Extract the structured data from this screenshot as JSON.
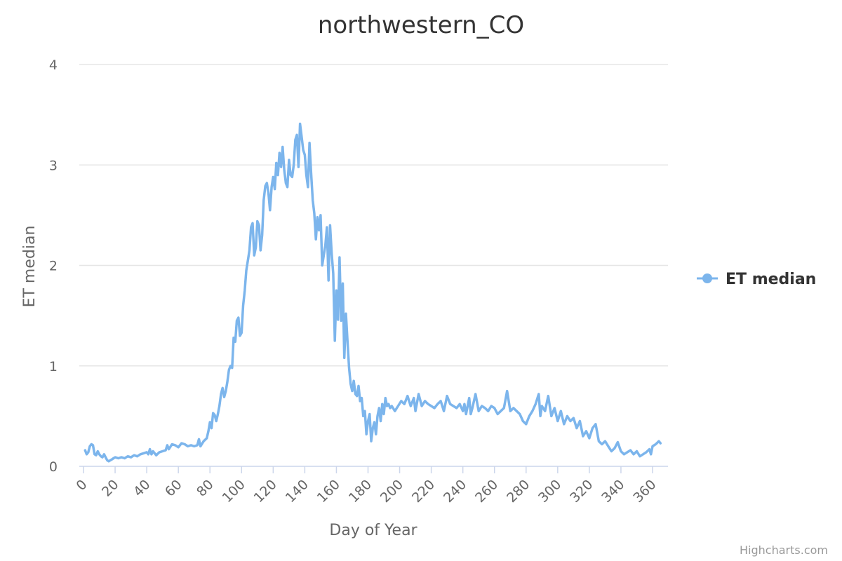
{
  "chart_data": {
    "type": "line",
    "title": "northwestern_CO",
    "xlabel": "Day of Year",
    "ylabel": "ET median",
    "xlim": [
      0,
      365
    ],
    "ylim": [
      0,
      4
    ],
    "x_ticks": [
      "0",
      "20",
      "40",
      "60",
      "80",
      "100",
      "120",
      "140",
      "160",
      "180",
      "200",
      "220",
      "240",
      "260",
      "280",
      "300",
      "320",
      "340",
      "360"
    ],
    "y_ticks": [
      "0",
      "1",
      "2",
      "3",
      "4"
    ],
    "grid": true,
    "legend_position": "right",
    "series": [
      {
        "name": "ET median",
        "color": "#7cb5ec",
        "points": [
          [
            1,
            0.16
          ],
          [
            2,
            0.12
          ],
          [
            3,
            0.14
          ],
          [
            4,
            0.2
          ],
          [
            5,
            0.22
          ],
          [
            6,
            0.21
          ],
          [
            7,
            0.12
          ],
          [
            8,
            0.11
          ],
          [
            9,
            0.15
          ],
          [
            10,
            0.12
          ],
          [
            11,
            0.1
          ],
          [
            12,
            0.09
          ],
          [
            13,
            0.12
          ],
          [
            14,
            0.09
          ],
          [
            15,
            0.06
          ],
          [
            16,
            0.05
          ],
          [
            17,
            0.06
          ],
          [
            18,
            0.07
          ],
          [
            19,
            0.08
          ],
          [
            20,
            0.09
          ],
          [
            22,
            0.08
          ],
          [
            24,
            0.09
          ],
          [
            26,
            0.08
          ],
          [
            28,
            0.1
          ],
          [
            30,
            0.09
          ],
          [
            32,
            0.11
          ],
          [
            34,
            0.1
          ],
          [
            36,
            0.12
          ],
          [
            38,
            0.13
          ],
          [
            40,
            0.14
          ],
          [
            41,
            0.12
          ],
          [
            42,
            0.17
          ],
          [
            43,
            0.12
          ],
          [
            44,
            0.15
          ],
          [
            46,
            0.11
          ],
          [
            48,
            0.14
          ],
          [
            50,
            0.15
          ],
          [
            52,
            0.16
          ],
          [
            53,
            0.21
          ],
          [
            54,
            0.17
          ],
          [
            56,
            0.22
          ],
          [
            58,
            0.21
          ],
          [
            60,
            0.19
          ],
          [
            62,
            0.23
          ],
          [
            64,
            0.22
          ],
          [
            66,
            0.2
          ],
          [
            68,
            0.21
          ],
          [
            70,
            0.2
          ],
          [
            72,
            0.21
          ],
          [
            73,
            0.27
          ],
          [
            74,
            0.2
          ],
          [
            76,
            0.25
          ],
          [
            78,
            0.28
          ],
          [
            79,
            0.35
          ],
          [
            80,
            0.44
          ],
          [
            81,
            0.38
          ],
          [
            82,
            0.53
          ],
          [
            83,
            0.51
          ],
          [
            84,
            0.45
          ],
          [
            85,
            0.52
          ],
          [
            86,
            0.6
          ],
          [
            87,
            0.72
          ],
          [
            88,
            0.78
          ],
          [
            89,
            0.69
          ],
          [
            90,
            0.75
          ],
          [
            91,
            0.84
          ],
          [
            92,
            0.96
          ],
          [
            93,
            1.0
          ],
          [
            94,
            0.98
          ],
          [
            95,
            1.28
          ],
          [
            96,
            1.24
          ],
          [
            97,
            1.45
          ],
          [
            98,
            1.48
          ],
          [
            99,
            1.3
          ],
          [
            100,
            1.33
          ],
          [
            101,
            1.6
          ],
          [
            102,
            1.75
          ],
          [
            103,
            1.95
          ],
          [
            104,
            2.05
          ],
          [
            105,
            2.15
          ],
          [
            106,
            2.38
          ],
          [
            107,
            2.42
          ],
          [
            108,
            2.1
          ],
          [
            109,
            2.18
          ],
          [
            110,
            2.44
          ],
          [
            111,
            2.4
          ],
          [
            112,
            2.15
          ],
          [
            113,
            2.3
          ],
          [
            114,
            2.65
          ],
          [
            115,
            2.79
          ],
          [
            116,
            2.82
          ],
          [
            117,
            2.72
          ],
          [
            118,
            2.55
          ],
          [
            119,
            2.78
          ],
          [
            120,
            2.88
          ],
          [
            121,
            2.76
          ],
          [
            122,
            3.02
          ],
          [
            123,
            2.9
          ],
          [
            124,
            3.12
          ],
          [
            125,
            2.98
          ],
          [
            126,
            3.18
          ],
          [
            127,
            2.95
          ],
          [
            128,
            2.82
          ],
          [
            129,
            2.78
          ],
          [
            130,
            3.05
          ],
          [
            131,
            2.9
          ],
          [
            132,
            2.88
          ],
          [
            133,
            3.0
          ],
          [
            134,
            3.25
          ],
          [
            135,
            3.3
          ],
          [
            136,
            2.98
          ],
          [
            137,
            3.41
          ],
          [
            138,
            3.28
          ],
          [
            139,
            3.15
          ],
          [
            140,
            3.1
          ],
          [
            141,
            2.9
          ],
          [
            142,
            2.78
          ],
          [
            143,
            3.22
          ],
          [
            144,
            2.92
          ],
          [
            145,
            2.65
          ],
          [
            146,
            2.52
          ],
          [
            147,
            2.26
          ],
          [
            148,
            2.48
          ],
          [
            149,
            2.35
          ],
          [
            150,
            2.5
          ],
          [
            151,
            2.0
          ],
          [
            152,
            2.1
          ],
          [
            153,
            2.2
          ],
          [
            154,
            2.38
          ],
          [
            155,
            1.85
          ],
          [
            156,
            2.4
          ],
          [
            157,
            2.12
          ],
          [
            158,
            1.92
          ],
          [
            159,
            1.25
          ],
          [
            160,
            1.75
          ],
          [
            161,
            1.46
          ],
          [
            162,
            2.08
          ],
          [
            163,
            1.45
          ],
          [
            164,
            1.82
          ],
          [
            165,
            1.08
          ],
          [
            166,
            1.52
          ],
          [
            167,
            1.25
          ],
          [
            168,
            0.98
          ],
          [
            169,
            0.82
          ],
          [
            170,
            0.75
          ],
          [
            171,
            0.85
          ],
          [
            172,
            0.72
          ],
          [
            173,
            0.7
          ],
          [
            174,
            0.8
          ],
          [
            175,
            0.65
          ],
          [
            176,
            0.68
          ],
          [
            177,
            0.5
          ],
          [
            178,
            0.55
          ],
          [
            179,
            0.32
          ],
          [
            180,
            0.45
          ],
          [
            181,
            0.52
          ],
          [
            182,
            0.25
          ],
          [
            183,
            0.38
          ],
          [
            184,
            0.44
          ],
          [
            185,
            0.32
          ],
          [
            186,
            0.5
          ],
          [
            187,
            0.58
          ],
          [
            188,
            0.45
          ],
          [
            189,
            0.62
          ],
          [
            190,
            0.52
          ],
          [
            191,
            0.68
          ],
          [
            192,
            0.6
          ],
          [
            193,
            0.62
          ],
          [
            194,
            0.58
          ],
          [
            195,
            0.6
          ],
          [
            197,
            0.55
          ],
          [
            199,
            0.6
          ],
          [
            201,
            0.65
          ],
          [
            203,
            0.62
          ],
          [
            205,
            0.7
          ],
          [
            207,
            0.6
          ],
          [
            209,
            0.68
          ],
          [
            210,
            0.55
          ],
          [
            212,
            0.72
          ],
          [
            214,
            0.6
          ],
          [
            216,
            0.65
          ],
          [
            218,
            0.62
          ],
          [
            220,
            0.6
          ],
          [
            222,
            0.58
          ],
          [
            224,
            0.62
          ],
          [
            226,
            0.65
          ],
          [
            228,
            0.55
          ],
          [
            230,
            0.7
          ],
          [
            232,
            0.62
          ],
          [
            234,
            0.6
          ],
          [
            236,
            0.58
          ],
          [
            238,
            0.62
          ],
          [
            240,
            0.55
          ],
          [
            241,
            0.62
          ],
          [
            242,
            0.52
          ],
          [
            244,
            0.68
          ],
          [
            245,
            0.52
          ],
          [
            246,
            0.58
          ],
          [
            248,
            0.72
          ],
          [
            250,
            0.55
          ],
          [
            252,
            0.6
          ],
          [
            254,
            0.58
          ],
          [
            256,
            0.55
          ],
          [
            258,
            0.6
          ],
          [
            260,
            0.58
          ],
          [
            262,
            0.52
          ],
          [
            264,
            0.55
          ],
          [
            266,
            0.58
          ],
          [
            268,
            0.75
          ],
          [
            270,
            0.55
          ],
          [
            272,
            0.58
          ],
          [
            274,
            0.55
          ],
          [
            276,
            0.52
          ],
          [
            278,
            0.45
          ],
          [
            280,
            0.42
          ],
          [
            282,
            0.5
          ],
          [
            284,
            0.55
          ],
          [
            286,
            0.62
          ],
          [
            288,
            0.72
          ],
          [
            289,
            0.5
          ],
          [
            290,
            0.6
          ],
          [
            292,
            0.55
          ],
          [
            294,
            0.7
          ],
          [
            296,
            0.5
          ],
          [
            298,
            0.58
          ],
          [
            300,
            0.45
          ],
          [
            302,
            0.55
          ],
          [
            304,
            0.42
          ],
          [
            306,
            0.5
          ],
          [
            308,
            0.45
          ],
          [
            310,
            0.48
          ],
          [
            312,
            0.38
          ],
          [
            314,
            0.45
          ],
          [
            316,
            0.3
          ],
          [
            318,
            0.35
          ],
          [
            320,
            0.28
          ],
          [
            322,
            0.38
          ],
          [
            324,
            0.42
          ],
          [
            326,
            0.25
          ],
          [
            328,
            0.22
          ],
          [
            330,
            0.25
          ],
          [
            332,
            0.2
          ],
          [
            334,
            0.15
          ],
          [
            336,
            0.18
          ],
          [
            338,
            0.24
          ],
          [
            340,
            0.15
          ],
          [
            342,
            0.12
          ],
          [
            344,
            0.14
          ],
          [
            346,
            0.16
          ],
          [
            348,
            0.12
          ],
          [
            350,
            0.15
          ],
          [
            352,
            0.1
          ],
          [
            354,
            0.12
          ],
          [
            356,
            0.14
          ],
          [
            358,
            0.17
          ],
          [
            359,
            0.12
          ],
          [
            360,
            0.2
          ],
          [
            362,
            0.22
          ],
          [
            364,
            0.25
          ],
          [
            365,
            0.23
          ]
        ]
      }
    ],
    "credits": "Highcharts.com"
  }
}
